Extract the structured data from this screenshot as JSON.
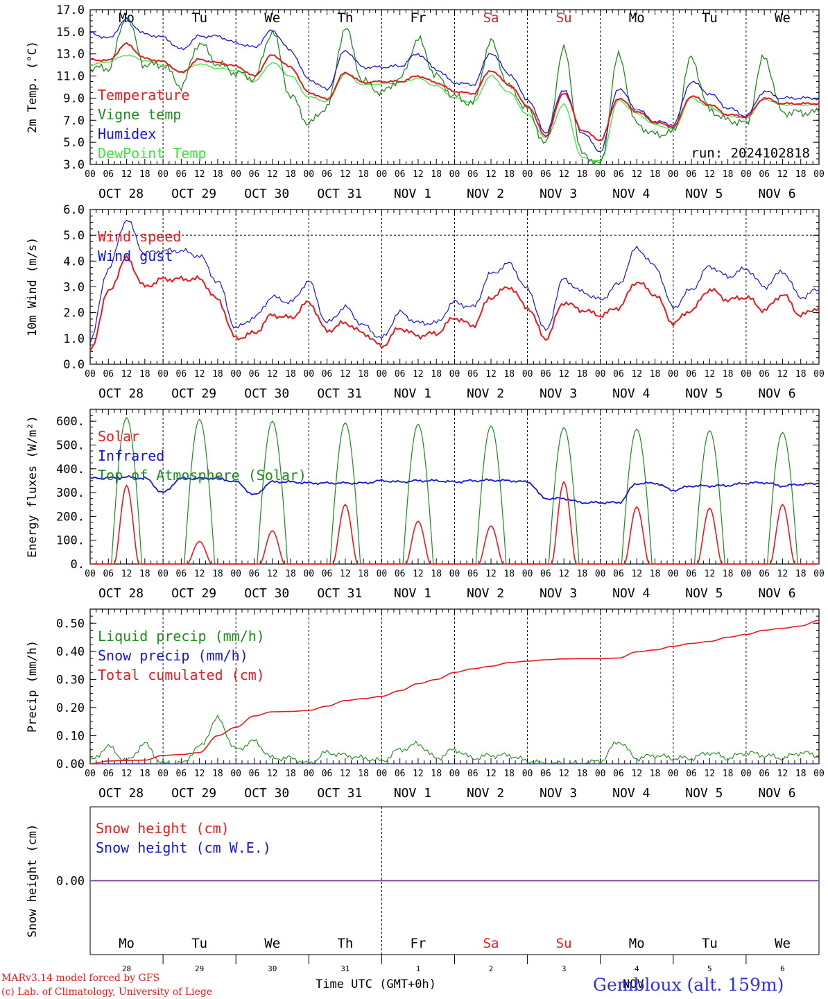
{
  "footer": {
    "credit_line1": "MARv3.14 model forced by GFS",
    "credit_line2": "(c) Lab. of Climatology, University of Liege",
    "xlabel": "Time UTC (GMT+0h)",
    "station": "Gembloux (alt. 159m)",
    "overlap_text": "NOV"
  },
  "colors": {
    "red": "#e8191e",
    "green": "#1c8a1c",
    "blue": "#1515d8",
    "lightgreen": "#37e837",
    "purple": "#7a3aa0",
    "axis": "#000000"
  },
  "day_names": [
    "Mo",
    "Tu",
    "We",
    "Th",
    "Fr",
    "Sa",
    "Su",
    "Mo",
    "Tu",
    "We"
  ],
  "day_name_colors": [
    "black",
    "black",
    "black",
    "black",
    "black",
    "red",
    "red",
    "black",
    "black",
    "black"
  ],
  "hour_ticks": [
    "00",
    "06",
    "12",
    "18"
  ],
  "date_labels": [
    "OCT 28",
    "OCT 29",
    "OCT 30",
    "OCT 31",
    "NOV  1",
    "NOV  2",
    "NOV  3",
    "NOV  4",
    "NOV  5",
    "NOV  6"
  ],
  "day_numbers": [
    "28",
    "29",
    "30",
    "31",
    "1",
    "2",
    "3",
    "4",
    "5",
    "6"
  ],
  "chart_data": [
    {
      "type": "line",
      "ylabel": "2m Temp. (°C)",
      "ylim": [
        3.0,
        17.0
      ],
      "yticks": [
        "3.0",
        "5.0",
        "7.0",
        "9.0",
        "11.0",
        "13.0",
        "15.0",
        "17.0"
      ],
      "annotation": "run: 2024102818",
      "x_hours": [
        0,
        6,
        12,
        18,
        24,
        30,
        36,
        42,
        48,
        54,
        60,
        66,
        72,
        78,
        84,
        90,
        96,
        102,
        108,
        114,
        120,
        126,
        132,
        138,
        144,
        150,
        156,
        162,
        168,
        174,
        180,
        186,
        192,
        198,
        204,
        210,
        216,
        222,
        228,
        234,
        240
      ],
      "series": [
        {
          "name": "Temperature",
          "color": "red",
          "values": [
            12.5,
            12.4,
            13.9,
            12.6,
            12.3,
            11.3,
            12.5,
            12.2,
            11.9,
            11.0,
            12.9,
            11.8,
            9.5,
            8.9,
            11.3,
            10.4,
            10.5,
            10.5,
            11.0,
            10.4,
            9.6,
            9.4,
            11.5,
            10.2,
            8.3,
            5.6,
            9.5,
            6.1,
            5.2,
            9.0,
            7.8,
            6.8,
            6.4,
            9.2,
            8.4,
            7.5,
            7.3,
            9.0,
            8.5,
            8.5,
            8.5
          ]
        },
        {
          "name": "Vigne temp",
          "color": "green",
          "values": [
            11.7,
            11.7,
            16.3,
            12.0,
            12.0,
            10.1,
            14.0,
            12.1,
            11.3,
            10.8,
            15.0,
            9.2,
            6.7,
            8.2,
            15.3,
            10.5,
            9.5,
            10.7,
            14.3,
            11.0,
            9.1,
            8.5,
            14.1,
            10.0,
            8.0,
            4.8,
            13.4,
            3.9,
            3.0,
            12.8,
            6.6,
            5.7,
            5.9,
            12.6,
            7.9,
            7.0,
            6.7,
            12.7,
            7.7,
            7.7,
            7.7
          ]
        },
        {
          "name": "Humidex",
          "color": "blue",
          "values": [
            14.9,
            14.4,
            16.1,
            14.8,
            14.5,
            13.4,
            14.6,
            14.6,
            14.0,
            13.6,
            15.1,
            13.3,
            10.7,
            9.8,
            13.3,
            11.8,
            11.8,
            11.9,
            13.0,
            11.6,
            10.4,
            10.2,
            13.1,
            11.2,
            8.9,
            5.9,
            9.8,
            5.9,
            4.2,
            9.9,
            8.0,
            6.9,
            6.6,
            10.5,
            9.4,
            8.1,
            7.4,
            9.6,
            9.0,
            9.0,
            9.0
          ]
        },
        {
          "name": "DewPoint Temp",
          "color": "lightgreen",
          "values": [
            12.0,
            12.3,
            12.9,
            12.4,
            12.0,
            11.4,
            12.1,
            11.7,
            11.5,
            10.5,
            12.2,
            11.0,
            9.1,
            8.7,
            11.2,
            10.2,
            10.3,
            10.4,
            10.8,
            10.1,
            9.0,
            8.6,
            11.0,
            9.5,
            7.5,
            5.4,
            8.4,
            3.6,
            3.3,
            8.8,
            7.6,
            6.6,
            6.2,
            9.0,
            8.2,
            7.4,
            7.2,
            8.9,
            8.4,
            8.4,
            8.4
          ]
        }
      ]
    },
    {
      "type": "line",
      "ylabel": "10m Wind (m/s)",
      "ylim": [
        0.0,
        6.0
      ],
      "yticks": [
        "0.0",
        "1.0",
        "2.0",
        "3.0",
        "4.0",
        "5.0",
        "6.0"
      ],
      "hline": 5.0,
      "x_hours": [
        0,
        6,
        12,
        18,
        24,
        30,
        36,
        42,
        48,
        54,
        60,
        66,
        72,
        78,
        84,
        90,
        96,
        102,
        108,
        114,
        120,
        126,
        132,
        138,
        144,
        150,
        156,
        162,
        168,
        174,
        180,
        186,
        192,
        198,
        204,
        210,
        216,
        222,
        228,
        234,
        240
      ],
      "series": [
        {
          "name": "Wind speed",
          "color": "red",
          "values": [
            0.5,
            2.8,
            4.1,
            3.0,
            3.3,
            3.3,
            3.3,
            2.5,
            1.0,
            1.2,
            1.9,
            1.8,
            2.4,
            1.3,
            1.6,
            1.2,
            0.7,
            1.4,
            1.1,
            1.2,
            1.8,
            1.5,
            2.6,
            3.0,
            2.2,
            1.0,
            2.4,
            2.1,
            1.9,
            2.2,
            3.2,
            2.7,
            1.6,
            2.1,
            2.9,
            2.5,
            2.6,
            2.1,
            2.7,
            1.9,
            2.2
          ]
        },
        {
          "name": "Wind gust",
          "color": "blue",
          "values": [
            0.9,
            3.7,
            5.6,
            4.3,
            4.4,
            4.4,
            4.2,
            3.2,
            1.4,
            1.8,
            2.6,
            2.4,
            3.2,
            1.6,
            2.2,
            1.5,
            1.0,
            2.0,
            1.6,
            1.6,
            2.4,
            2.2,
            3.5,
            3.9,
            2.9,
            1.3,
            3.3,
            2.8,
            2.5,
            3.1,
            4.5,
            3.8,
            2.2,
            2.9,
            3.8,
            3.4,
            3.7,
            3.0,
            3.6,
            2.6,
            2.9
          ]
        }
      ]
    },
    {
      "type": "line",
      "ylabel": "Energy fluxes (W/m²)",
      "ylim": [
        0,
        650
      ],
      "yticks": [
        "0.",
        "100.",
        "200.",
        "300.",
        "400.",
        "500.",
        "600."
      ],
      "x_hours": [
        0,
        6,
        12,
        18,
        24,
        30,
        36,
        42,
        48,
        54,
        60,
        66,
        72,
        78,
        84,
        90,
        96,
        102,
        108,
        114,
        120,
        126,
        132,
        138,
        144,
        150,
        156,
        162,
        168,
        174,
        180,
        186,
        192,
        198,
        204,
        210,
        216,
        222,
        228,
        234,
        240
      ],
      "toa_peaks": [
        615,
        608,
        600,
        593,
        587,
        580,
        573,
        567,
        560,
        553
      ],
      "solar_peaks": [
        330,
        95,
        140,
        250,
        180,
        160,
        345,
        240,
        235,
        250
      ],
      "series": [
        {
          "name": "Solar",
          "color": "red"
        },
        {
          "name": "Infrared",
          "color": "blue",
          "values": [
            360,
            362,
            365,
            360,
            300,
            360,
            360,
            360,
            345,
            290,
            345,
            345,
            340,
            340,
            340,
            340,
            350,
            345,
            350,
            350,
            345,
            350,
            352,
            350,
            345,
            275,
            275,
            258,
            258,
            258,
            338,
            340,
            310,
            328,
            328,
            330,
            340,
            342,
            328,
            335,
            338
          ]
        },
        {
          "name": "Top of Atmosphere (Solar)",
          "color": "green"
        }
      ]
    },
    {
      "type": "line",
      "ylabel": "Precip (mm/h)",
      "ylim": [
        0.0,
        0.55
      ],
      "yticks": [
        "0.00",
        "0.10",
        "0.20",
        "0.30",
        "0.40",
        "0.50"
      ],
      "x_hours": [
        0,
        6,
        12,
        18,
        24,
        30,
        36,
        42,
        48,
        54,
        60,
        66,
        72,
        78,
        84,
        90,
        96,
        102,
        108,
        114,
        120,
        126,
        132,
        138,
        144,
        150,
        156,
        162,
        168,
        174,
        180,
        186,
        192,
        198,
        204,
        210,
        216,
        222,
        228,
        234,
        240
      ],
      "series": [
        {
          "name": "Liquid precip (mm/h)",
          "color": "green",
          "values": [
            0.01,
            0.06,
            0.01,
            0.07,
            0.0,
            0.0,
            0.06,
            0.16,
            0.05,
            0.08,
            0.02,
            0.02,
            0.0,
            0.04,
            0.03,
            0.02,
            0.01,
            0.05,
            0.07,
            0.02,
            0.05,
            0.02,
            0.03,
            0.03,
            0.01,
            0.0,
            0.0,
            0.0,
            0.01,
            0.08,
            0.02,
            0.03,
            0.02,
            0.02,
            0.04,
            0.02,
            0.04,
            0.03,
            0.02,
            0.04,
            0.03
          ]
        },
        {
          "name": "Snow precip (mm/h)",
          "color": "blue",
          "values": [
            0,
            0,
            0,
            0,
            0,
            0,
            0,
            0,
            0,
            0,
            0,
            0,
            0,
            0,
            0,
            0,
            0,
            0,
            0,
            0,
            0,
            0,
            0,
            0,
            0,
            0,
            0,
            0,
            0,
            0,
            0,
            0,
            0,
            0,
            0,
            0,
            0,
            0,
            0,
            0,
            0
          ]
        },
        {
          "name": "Total cumulated (cm)",
          "color": "red",
          "values": [
            0.0,
            0.01,
            0.012,
            0.013,
            0.03,
            0.033,
            0.04,
            0.1,
            0.13,
            0.17,
            0.185,
            0.186,
            0.19,
            0.205,
            0.225,
            0.232,
            0.24,
            0.26,
            0.285,
            0.3,
            0.325,
            0.338,
            0.347,
            0.36,
            0.365,
            0.37,
            0.373,
            0.374,
            0.374,
            0.376,
            0.398,
            0.405,
            0.418,
            0.428,
            0.435,
            0.45,
            0.46,
            0.475,
            0.482,
            0.49,
            0.51
          ]
        }
      ]
    },
    {
      "type": "line",
      "ylabel": "Snow height (cm)",
      "ylim": [
        -1.0,
        1.0
      ],
      "yticks": [
        "0.00"
      ],
      "series": [
        {
          "name": "Snow height (cm)",
          "color": "red",
          "values": [
            0,
            0
          ]
        },
        {
          "name": "Snow height (cm W.E.)",
          "color": "blue",
          "values": [
            0,
            0
          ]
        }
      ]
    }
  ]
}
